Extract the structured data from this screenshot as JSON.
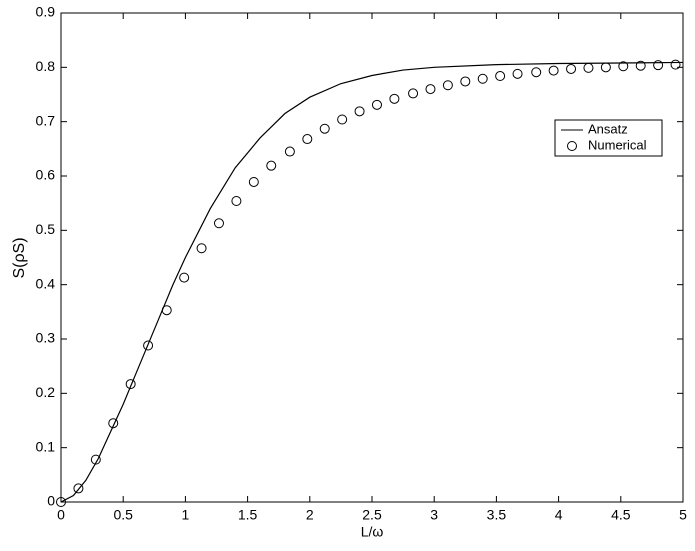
{
  "chart_data": {
    "type": "line-scatter",
    "xlabel": "L/ω",
    "ylabel": "S(ρS)",
    "xlim": [
      0,
      5
    ],
    "ylim": [
      0,
      0.9
    ],
    "xticks": [
      0,
      0.5,
      1,
      1.5,
      2,
      2.5,
      3,
      3.5,
      4,
      4.5,
      5
    ],
    "yticks": [
      0,
      0.1,
      0.2,
      0.3,
      0.4,
      0.5,
      0.6,
      0.7,
      0.8,
      0.9
    ],
    "legend": "upper right",
    "series": [
      {
        "name": "Ansatz",
        "kind": "line",
        "color": "#000000",
        "x": [
          0,
          0.1,
          0.2,
          0.3,
          0.4,
          0.5,
          0.6,
          0.7,
          0.8,
          0.9,
          1.0,
          1.2,
          1.4,
          1.6,
          1.8,
          2.0,
          2.25,
          2.5,
          2.75,
          3,
          3.5,
          4,
          4.5,
          5
        ],
        "values": [
          0,
          0.012,
          0.04,
          0.08,
          0.13,
          0.18,
          0.235,
          0.29,
          0.345,
          0.4,
          0.45,
          0.54,
          0.615,
          0.67,
          0.715,
          0.745,
          0.77,
          0.785,
          0.795,
          0.8,
          0.805,
          0.807,
          0.808,
          0.809
        ]
      },
      {
        "name": "Numerical",
        "kind": "marker",
        "color": "#000000",
        "x": [
          0,
          0.14,
          0.28,
          0.42,
          0.56,
          0.7,
          0.85,
          0.99,
          1.13,
          1.27,
          1.41,
          1.55,
          1.69,
          1.84,
          1.98,
          2.12,
          2.26,
          2.4,
          2.54,
          2.68,
          2.83,
          2.97,
          3.11,
          3.25,
          3.39,
          3.53,
          3.67,
          3.82,
          3.96,
          4.1,
          4.24,
          4.38,
          4.52,
          4.66,
          4.8,
          4.94
        ],
        "values": [
          0,
          0.025,
          0.078,
          0.145,
          0.217,
          0.288,
          0.353,
          0.413,
          0.467,
          0.513,
          0.554,
          0.589,
          0.619,
          0.645,
          0.668,
          0.687,
          0.704,
          0.719,
          0.731,
          0.742,
          0.752,
          0.76,
          0.767,
          0.774,
          0.779,
          0.784,
          0.788,
          0.791,
          0.794,
          0.797,
          0.799,
          0.8,
          0.802,
          0.803,
          0.804,
          0.805
        ]
      }
    ]
  }
}
